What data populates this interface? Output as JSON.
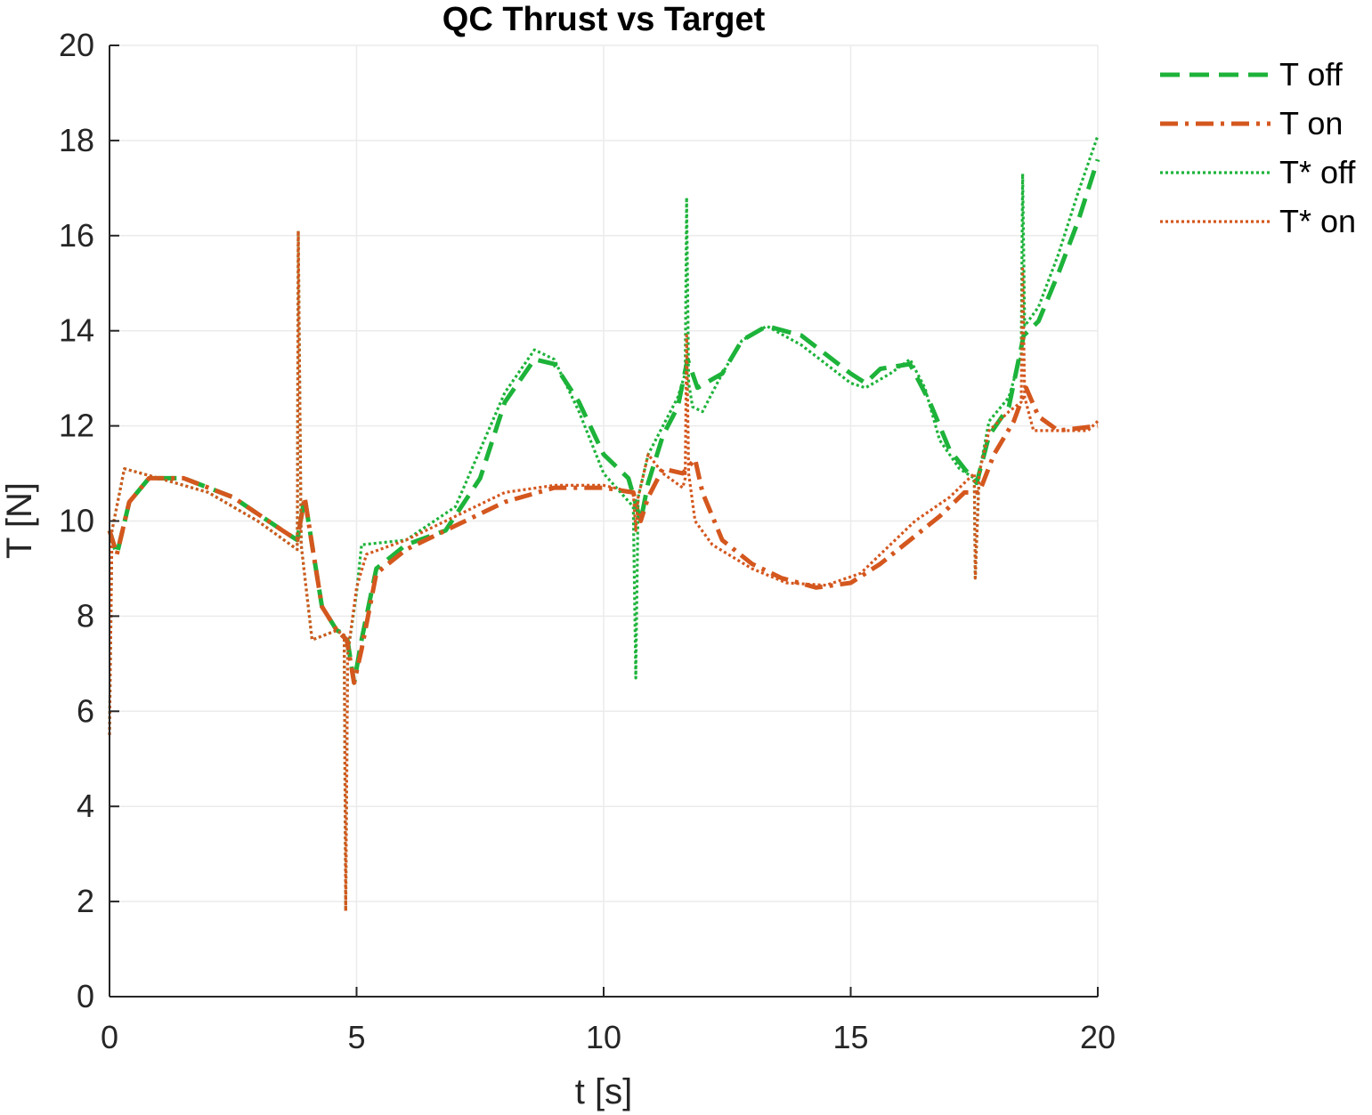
{
  "chart_data": {
    "type": "line",
    "title": "QC Thrust vs Target",
    "xlabel": "t [s]",
    "ylabel": "T [N]",
    "xlim": [
      0,
      20
    ],
    "ylim": [
      0,
      20
    ],
    "xticks": [
      0,
      5,
      10,
      15,
      20
    ],
    "yticks": [
      0,
      2,
      4,
      6,
      8,
      10,
      12,
      14,
      16,
      18,
      20
    ],
    "xtick_labels": [
      "0",
      "5",
      "10",
      "15",
      "20"
    ],
    "ytick_labels": [
      "0",
      "2",
      "4",
      "6",
      "8",
      "10",
      "12",
      "14",
      "16",
      "18",
      "20"
    ],
    "grid": true,
    "legend_position": "outside-top-right",
    "series": [
      {
        "name": "T off",
        "color": "#1db33a",
        "style": "dashed",
        "points": [
          [
            0,
            9.8
          ],
          [
            0.15,
            9.3
          ],
          [
            0.4,
            10.4
          ],
          [
            0.8,
            10.9
          ],
          [
            1.5,
            10.9
          ],
          [
            2.5,
            10.5
          ],
          [
            3.5,
            9.8
          ],
          [
            3.8,
            9.6
          ],
          [
            3.95,
            10.5
          ],
          [
            4.1,
            9.5
          ],
          [
            4.3,
            8.2
          ],
          [
            4.6,
            7.7
          ],
          [
            4.8,
            7.6
          ],
          [
            4.95,
            6.6
          ],
          [
            5.1,
            7.5
          ],
          [
            5.4,
            9.0
          ],
          [
            6.0,
            9.5
          ],
          [
            6.8,
            9.8
          ],
          [
            7.5,
            10.9
          ],
          [
            8.0,
            12.5
          ],
          [
            8.6,
            13.4
          ],
          [
            9.0,
            13.3
          ],
          [
            9.5,
            12.5
          ],
          [
            10.0,
            11.4
          ],
          [
            10.5,
            10.9
          ],
          [
            10.75,
            10.0
          ],
          [
            10.9,
            10.8
          ],
          [
            11.2,
            11.8
          ],
          [
            11.5,
            12.4
          ],
          [
            11.7,
            13.4
          ],
          [
            11.9,
            12.8
          ],
          [
            12.4,
            13.1
          ],
          [
            12.8,
            13.8
          ],
          [
            13.3,
            14.1
          ],
          [
            14.0,
            13.9
          ],
          [
            14.5,
            13.5
          ],
          [
            15.0,
            13.1
          ],
          [
            15.3,
            12.9
          ],
          [
            15.6,
            13.2
          ],
          [
            16.2,
            13.3
          ],
          [
            16.6,
            12.5
          ],
          [
            17.0,
            11.5
          ],
          [
            17.3,
            11.1
          ],
          [
            17.55,
            10.8
          ],
          [
            17.8,
            11.8
          ],
          [
            18.2,
            12.4
          ],
          [
            18.5,
            13.9
          ],
          [
            18.8,
            14.2
          ],
          [
            19.2,
            15.2
          ],
          [
            19.6,
            16.3
          ],
          [
            20.0,
            17.6
          ]
        ]
      },
      {
        "name": "T on",
        "color": "#d4571e",
        "style": "dashdot",
        "points": [
          [
            0,
            9.8
          ],
          [
            0.15,
            9.3
          ],
          [
            0.4,
            10.4
          ],
          [
            0.8,
            10.9
          ],
          [
            1.5,
            10.9
          ],
          [
            2.5,
            10.5
          ],
          [
            3.5,
            9.8
          ],
          [
            3.8,
            9.6
          ],
          [
            3.95,
            10.5
          ],
          [
            4.1,
            9.5
          ],
          [
            4.3,
            8.2
          ],
          [
            4.6,
            7.7
          ],
          [
            4.8,
            7.5
          ],
          [
            4.95,
            6.6
          ],
          [
            5.1,
            7.3
          ],
          [
            5.4,
            8.9
          ],
          [
            6.0,
            9.4
          ],
          [
            7.0,
            9.9
          ],
          [
            8.0,
            10.4
          ],
          [
            9.0,
            10.7
          ],
          [
            10.0,
            10.7
          ],
          [
            10.6,
            10.6
          ],
          [
            10.75,
            10.0
          ],
          [
            10.9,
            10.5
          ],
          [
            11.2,
            11.1
          ],
          [
            11.6,
            11.0
          ],
          [
            11.85,
            11.3
          ],
          [
            12.0,
            10.6
          ],
          [
            12.4,
            9.6
          ],
          [
            13.0,
            9.1
          ],
          [
            13.6,
            8.8
          ],
          [
            14.3,
            8.6
          ],
          [
            15.0,
            8.7
          ],
          [
            15.6,
            9.1
          ],
          [
            16.2,
            9.6
          ],
          [
            16.8,
            10.1
          ],
          [
            17.3,
            10.6
          ],
          [
            17.6,
            10.6
          ],
          [
            17.9,
            11.4
          ],
          [
            18.3,
            12.1
          ],
          [
            18.55,
            12.8
          ],
          [
            18.8,
            12.2
          ],
          [
            19.2,
            11.9
          ],
          [
            20.0,
            12.0
          ]
        ]
      },
      {
        "name": "T* off",
        "color": "#1db33a",
        "style": "dotted",
        "points": [
          [
            0,
            5.5
          ],
          [
            0.05,
            9.8
          ],
          [
            0.3,
            11.1
          ],
          [
            1.0,
            10.9
          ],
          [
            2.0,
            10.6
          ],
          [
            3.0,
            10.0
          ],
          [
            3.8,
            9.4
          ],
          [
            3.82,
            16.1
          ],
          [
            3.88,
            9.5
          ],
          [
            4.1,
            7.5
          ],
          [
            4.6,
            7.7
          ],
          [
            4.75,
            7.6
          ],
          [
            4.78,
            1.8
          ],
          [
            4.82,
            7.2
          ],
          [
            5.0,
            8.5
          ],
          [
            5.1,
            9.5
          ],
          [
            6.0,
            9.6
          ],
          [
            7.0,
            10.3
          ],
          [
            7.5,
            11.5
          ],
          [
            8.0,
            12.7
          ],
          [
            8.6,
            13.6
          ],
          [
            9.0,
            13.4
          ],
          [
            9.5,
            12.3
          ],
          [
            10.0,
            11.0
          ],
          [
            10.6,
            10.3
          ],
          [
            10.65,
            6.7
          ],
          [
            10.7,
            10.5
          ],
          [
            10.9,
            11.4
          ],
          [
            11.2,
            12.0
          ],
          [
            11.5,
            12.6
          ],
          [
            11.65,
            13.1
          ],
          [
            11.68,
            16.8
          ],
          [
            11.72,
            12.9
          ],
          [
            11.8,
            12.4
          ],
          [
            12.0,
            12.3
          ],
          [
            12.4,
            13.1
          ],
          [
            12.8,
            13.8
          ],
          [
            13.3,
            14.1
          ],
          [
            14.0,
            13.7
          ],
          [
            14.5,
            13.3
          ],
          [
            15.0,
            12.9
          ],
          [
            15.3,
            12.8
          ],
          [
            15.8,
            13.1
          ],
          [
            16.2,
            13.4
          ],
          [
            16.5,
            12.8
          ],
          [
            16.8,
            11.7
          ],
          [
            17.2,
            11.1
          ],
          [
            17.5,
            10.9
          ],
          [
            17.52,
            8.8
          ],
          [
            17.6,
            11.0
          ],
          [
            17.8,
            12.1
          ],
          [
            18.2,
            12.6
          ],
          [
            18.45,
            13.5
          ],
          [
            18.48,
            17.3
          ],
          [
            18.52,
            14.1
          ],
          [
            18.8,
            14.5
          ],
          [
            19.2,
            15.6
          ],
          [
            19.6,
            16.9
          ],
          [
            20.0,
            18.1
          ]
        ]
      },
      {
        "name": "T* on",
        "color": "#d4571e",
        "style": "dotted",
        "points": [
          [
            0,
            5.5
          ],
          [
            0.05,
            9.8
          ],
          [
            0.3,
            11.1
          ],
          [
            1.0,
            10.9
          ],
          [
            2.0,
            10.6
          ],
          [
            3.0,
            10.0
          ],
          [
            3.8,
            9.4
          ],
          [
            3.82,
            16.1
          ],
          [
            3.88,
            9.5
          ],
          [
            4.1,
            7.5
          ],
          [
            4.6,
            7.7
          ],
          [
            4.75,
            7.6
          ],
          [
            4.78,
            1.8
          ],
          [
            4.82,
            7.2
          ],
          [
            5.0,
            8.6
          ],
          [
            5.2,
            9.3
          ],
          [
            6.0,
            9.6
          ],
          [
            7.0,
            10.1
          ],
          [
            8.0,
            10.6
          ],
          [
            9.0,
            10.75
          ],
          [
            10.0,
            10.75
          ],
          [
            10.6,
            10.6
          ],
          [
            10.65,
            9.8
          ],
          [
            10.7,
            10.5
          ],
          [
            10.9,
            11.4
          ],
          [
            11.2,
            11.0
          ],
          [
            11.6,
            10.7
          ],
          [
            11.65,
            10.9
          ],
          [
            11.68,
            13.9
          ],
          [
            11.72,
            11.0
          ],
          [
            11.85,
            10.0
          ],
          [
            12.2,
            9.5
          ],
          [
            13.0,
            9.0
          ],
          [
            13.7,
            8.7
          ],
          [
            14.5,
            8.65
          ],
          [
            15.2,
            8.9
          ],
          [
            15.7,
            9.4
          ],
          [
            16.3,
            10.0
          ],
          [
            17.0,
            10.5
          ],
          [
            17.5,
            11.0
          ],
          [
            17.52,
            8.8
          ],
          [
            17.6,
            11.0
          ],
          [
            17.8,
            11.9
          ],
          [
            18.2,
            12.3
          ],
          [
            18.45,
            12.5
          ],
          [
            18.48,
            15.3
          ],
          [
            18.52,
            12.6
          ],
          [
            18.7,
            11.9
          ],
          [
            19.3,
            11.9
          ],
          [
            19.8,
            11.9
          ],
          [
            20.0,
            12.1
          ]
        ]
      }
    ]
  }
}
